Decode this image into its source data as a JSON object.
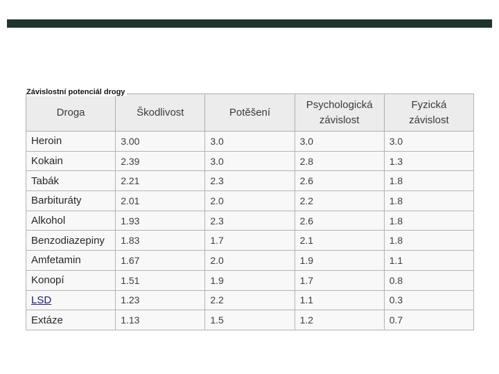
{
  "slide": {
    "background_color": "#ffffff",
    "accent_bar_color": "#1f3630"
  },
  "table": {
    "caption": "Závislostní potenciál drogy",
    "columns": [
      "Droga",
      "Škodlivost",
      "Potěšení",
      "Psychologická závislost",
      "Fyzická závislost"
    ],
    "rows": [
      {
        "cells": [
          "Heroin",
          "3.00",
          "3.0",
          "3.0",
          "3.0"
        ]
      },
      {
        "cells": [
          "Kokain",
          "2.39",
          "3.0",
          "2.8",
          "1.3"
        ]
      },
      {
        "cells": [
          "Tabák",
          "2.21",
          "2.3",
          "2.6",
          "1.8"
        ]
      },
      {
        "cells": [
          "Barbituráty",
          "2.01",
          "2.0",
          "2.2",
          "1.8"
        ]
      },
      {
        "cells": [
          "Alkohol",
          "1.93",
          "2.3",
          "2.6",
          "1.8"
        ]
      },
      {
        "cells": [
          "Benzodiazepiny",
          "1.83",
          "1.7",
          "2.1",
          "1.8"
        ]
      },
      {
        "cells": [
          "Amfetamin",
          "1.67",
          "2.0",
          "1.9",
          "1.1"
        ]
      },
      {
        "cells": [
          "Konopí",
          "1.51",
          "1.9",
          "1.7",
          "0.8"
        ]
      },
      {
        "cells": [
          "LSD",
          "1.23",
          "2.2",
          "1.1",
          "0.3"
        ],
        "is_link": true
      },
      {
        "cells": [
          "Extáze",
          "1.13",
          "1.5",
          "1.2",
          "0.7"
        ]
      }
    ],
    "colors": {
      "header_background": "#ececec",
      "row_background": "#f8f8f8",
      "border": "#b3b3b3",
      "link": "#1b1b78"
    }
  }
}
